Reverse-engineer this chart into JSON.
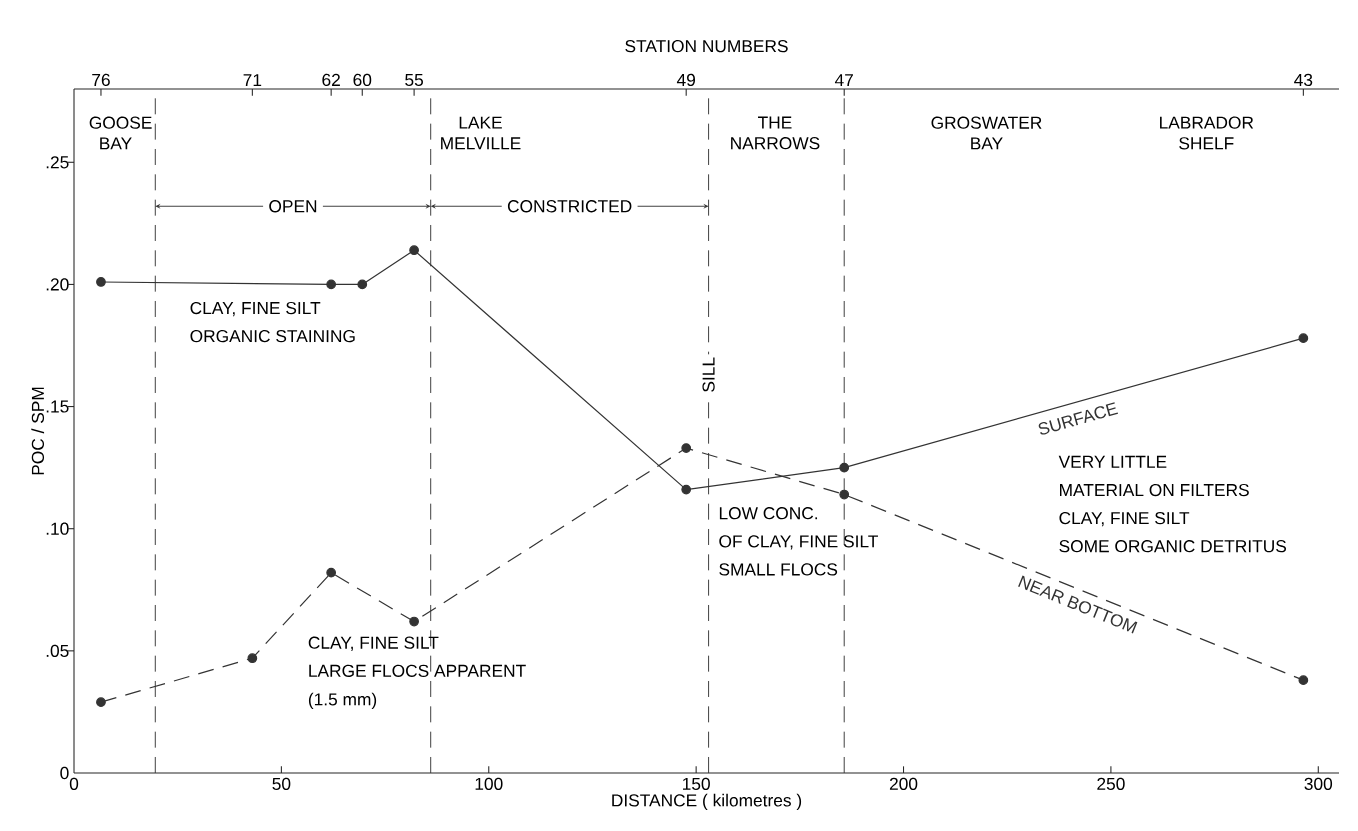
{
  "chart_data": {
    "type": "line",
    "xlabel": "DISTANCE ( kilometres )",
    "ylabel": "POC / SPM",
    "x2label": "STATION NUMBERS",
    "xlim": [
      0,
      305
    ],
    "ylim": [
      0,
      0.28
    ],
    "xticks": [
      0,
      50,
      100,
      150,
      200,
      250,
      300
    ],
    "yticks": [
      0,
      {
        "value": 0.05,
        "label": ".05"
      },
      {
        "value": 0.1,
        "label": ".10"
      },
      {
        "value": 0.15,
        "label": ".15"
      },
      {
        "value": 0.2,
        "label": ".20"
      },
      {
        "value": 0.25,
        "label": ".25"
      }
    ],
    "marker": "circle",
    "series": [
      {
        "name": "SURFACE",
        "color": "#333333",
        "line_style": "solid",
        "x": [
          6.5,
          62,
          69.5,
          82,
          147.6,
          185.7,
          296.4
        ],
        "values": [
          0.201,
          0.2,
          0.2,
          0.214,
          0.116,
          0.125,
          0.178
        ]
      },
      {
        "name": "NEAR BOTTOM",
        "color": "#333333",
        "line_style": "dashed",
        "x": [
          6.5,
          43,
          62,
          82,
          147.6,
          185.7,
          296.4
        ],
        "values": [
          0.029,
          0.047,
          0.082,
          0.062,
          0.133,
          0.114,
          0.038
        ]
      }
    ],
    "ref_lines": [
      {
        "axis": "x",
        "value": 19.6,
        "line_style": "dashed"
      },
      {
        "axis": "x",
        "value": 86,
        "line_style": "dashed"
      },
      {
        "axis": "x",
        "value": 153,
        "label": "SILL",
        "line_style": "dashed"
      },
      {
        "axis": "x",
        "value": 185.7,
        "line_style": "dashed"
      }
    ],
    "annotations": [
      "GOOSE BAY",
      "LAKE MELVILLE",
      "THE NARROWS",
      "GROSWATER BAY",
      "LABRADOR SHELF",
      "OPEN",
      "CONSTRICTED",
      "CLAY, FINE SILT",
      "ORGANIC STAINING",
      "CLAY, FINE SILT",
      "LARGE FLOCS APPARENT",
      "(1.5 mm)",
      "LOW CONC.",
      "OF CLAY, FINE SILT",
      "SMALL FLOCS",
      "VERY LITTLE",
      "MATERIAL ON FILTERS",
      "CLAY, FINE SILT",
      "SOME ORGANIC DETRITUS",
      "76",
      "71",
      "62",
      "60",
      "55",
      "49",
      "47",
      "43"
    ]
  }
}
